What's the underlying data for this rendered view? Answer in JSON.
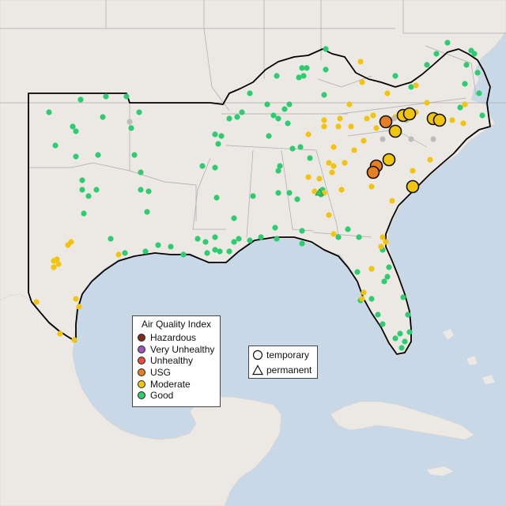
{
  "legend": {
    "title": "Air Quality Index",
    "categories": [
      {
        "label": "Hazardous",
        "color": "#7e2b1f"
      },
      {
        "label": "Very Unhealthy",
        "color": "#9b59b6"
      },
      {
        "label": "Unhealthy",
        "color": "#e74c3c"
      },
      {
        "label": "USG",
        "color": "#e67e22"
      },
      {
        "label": "Moderate",
        "color": "#f1c40f"
      },
      {
        "label": "Good",
        "color": "#2ecc71"
      }
    ]
  },
  "shape_legend": {
    "temporary": "temporary",
    "permanent": "permanent"
  },
  "colors": {
    "ocean": "#c9d8e6",
    "land": "#ece8e3",
    "nodata": "#bdbdbd"
  }
}
